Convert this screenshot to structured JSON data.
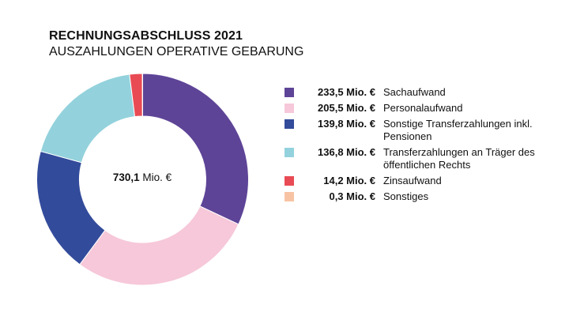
{
  "chart_data": {
    "type": "pie",
    "title": "RECHNUNGSABSCHLUSS 2021",
    "subtitle": "AUSZAHLUNGEN OPERATIVE GEBARUNG",
    "center_value": "730,1",
    "center_unit": "Mio. €",
    "legend_position": "right",
    "slices": [
      {
        "label": "Sachaufwand",
        "value": 233.5,
        "value_label": "233,5 Mio. €",
        "color": "#5e4497"
      },
      {
        "label": "Personalaufwand",
        "value": 205.5,
        "value_label": "205,5 Mio. €",
        "color": "#f6c8d9"
      },
      {
        "label": "Sonstige Transferzahlungen inkl. Pensionen",
        "value": 139.8,
        "value_label": "139,8 Mio. €",
        "color": "#334b9b"
      },
      {
        "label": "Transferzahlungen an Träger des öffentlichen Rechts",
        "value": 136.8,
        "value_label": "136,8 Mio. €",
        "color": "#93d2dc"
      },
      {
        "label": "Zinsaufwand",
        "value": 14.2,
        "value_label": "14,2 Mio. €",
        "color": "#e94b55"
      },
      {
        "label": "Sonstiges",
        "value": 0.3,
        "value_label": "0,3 Mio. €",
        "color": "#f7c3a3"
      }
    ]
  }
}
